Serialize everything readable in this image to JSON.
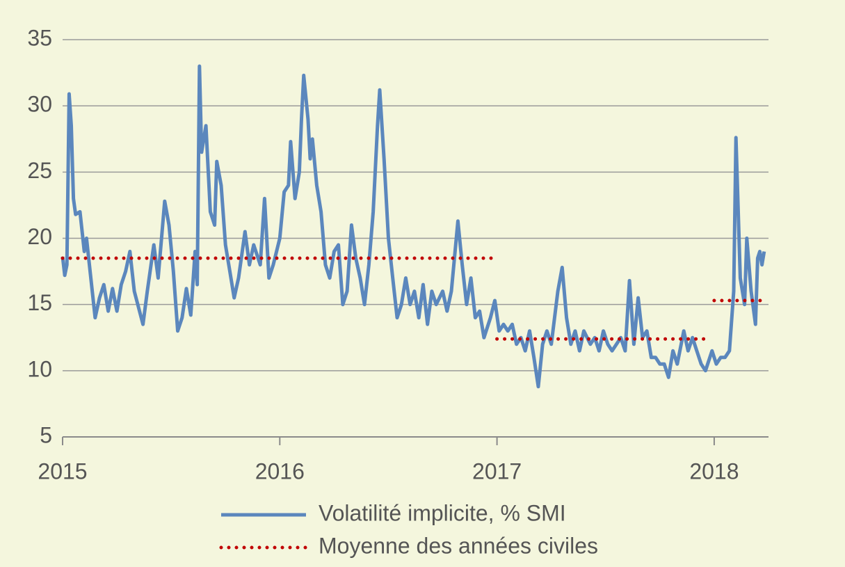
{
  "chart_data": {
    "type": "line",
    "xlim": [
      2015,
      2018.25
    ],
    "xticks": [
      2015,
      2016,
      2017,
      2018
    ],
    "ylim": [
      5,
      35
    ],
    "yticks": [
      5,
      10,
      15,
      20,
      25,
      30,
      35
    ],
    "grid": true,
    "legend": "bottom",
    "series": [
      {
        "name": "Volatilité implicite, % SMI",
        "color": "#5b87bd",
        "style": "solid",
        "x": [
          2015.0,
          2015.01,
          2015.02,
          2015.03,
          2015.04,
          2015.05,
          2015.06,
          2015.08,
          2015.1,
          2015.11,
          2015.13,
          2015.15,
          2015.17,
          2015.19,
          2015.21,
          2015.23,
          2015.25,
          2015.27,
          2015.29,
          2015.31,
          2015.33,
          2015.37,
          2015.39,
          2015.42,
          2015.44,
          2015.47,
          2015.49,
          2015.51,
          2015.53,
          2015.55,
          2015.57,
          2015.59,
          2015.61,
          2015.62,
          2015.63,
          2015.64,
          2015.66,
          2015.68,
          2015.7,
          2015.71,
          2015.73,
          2015.75,
          2015.77,
          2015.79,
          2015.81,
          2015.84,
          2015.86,
          2015.88,
          2015.91,
          2015.93,
          2015.95,
          2015.97,
          2016.0,
          2016.02,
          2016.04,
          2016.05,
          2016.07,
          2016.09,
          2016.1,
          2016.11,
          2016.13,
          2016.14,
          2016.15,
          2016.17,
          2016.19,
          2016.21,
          2016.23,
          2016.25,
          2016.27,
          2016.29,
          2016.31,
          2016.33,
          2016.35,
          2016.37,
          2016.39,
          2016.41,
          2016.43,
          2016.45,
          2016.46,
          2016.48,
          2016.5,
          2016.52,
          2016.54,
          2016.56,
          2016.58,
          2016.6,
          2016.62,
          2016.64,
          2016.66,
          2016.68,
          2016.7,
          2016.72,
          2016.75,
          2016.77,
          2016.79,
          2016.82,
          2016.84,
          2016.86,
          2016.88,
          2016.9,
          2016.92,
          2016.94,
          2016.97,
          2016.99,
          2017.01,
          2017.03,
          2017.05,
          2017.07,
          2017.09,
          2017.11,
          2017.13,
          2017.15,
          2017.17,
          2017.19,
          2017.21,
          2017.23,
          2017.25,
          2017.28,
          2017.3,
          2017.32,
          2017.34,
          2017.36,
          2017.38,
          2017.4,
          2017.43,
          2017.45,
          2017.47,
          2017.49,
          2017.51,
          2017.53,
          2017.55,
          2017.57,
          2017.59,
          2017.61,
          2017.63,
          2017.65,
          2017.67,
          2017.69,
          2017.71,
          2017.73,
          2017.75,
          2017.77,
          2017.79,
          2017.81,
          2017.83,
          2017.86,
          2017.88,
          2017.9,
          2017.92,
          2017.94,
          2017.96,
          2017.99,
          2018.01,
          2018.03,
          2018.05,
          2018.07,
          2018.09,
          2018.1,
          2018.12,
          2018.13,
          2018.14,
          2018.15,
          2018.17,
          2018.19,
          2018.2,
          2018.21,
          2018.22,
          2018.23
        ],
        "values": [
          18.6,
          17.2,
          18.0,
          30.9,
          28.5,
          23.0,
          21.8,
          22.0,
          19.0,
          20.0,
          17.0,
          14.0,
          15.5,
          16.5,
          14.5,
          16.2,
          14.5,
          16.5,
          17.5,
          19.0,
          16.0,
          13.5,
          16.0,
          19.5,
          17.0,
          22.8,
          21.0,
          17.5,
          13.0,
          14.0,
          16.2,
          14.2,
          19.0,
          16.5,
          33.0,
          26.5,
          28.5,
          22.0,
          21.0,
          25.8,
          24.0,
          19.5,
          17.5,
          15.5,
          17.0,
          20.5,
          18.0,
          19.5,
          18.0,
          23.0,
          17.0,
          18.0,
          20.0,
          23.5,
          24.0,
          27.3,
          23.0,
          25.0,
          29.0,
          32.3,
          29.0,
          26.0,
          27.5,
          24.0,
          22.0,
          18.0,
          17.0,
          19.0,
          19.5,
          15.0,
          16.0,
          21.0,
          18.5,
          17.0,
          15.0,
          18.0,
          22.0,
          28.5,
          31.2,
          26.0,
          20.0,
          17.0,
          14.0,
          15.0,
          17.0,
          15.0,
          16.0,
          14.0,
          16.5,
          13.5,
          16.0,
          15.0,
          16.0,
          14.5,
          16.0,
          21.3,
          18.0,
          15.0,
          17.0,
          14.0,
          14.5,
          12.5,
          14.0,
          15.3,
          13.0,
          13.5,
          13.0,
          13.5,
          12.0,
          12.5,
          11.5,
          13.0,
          11.0,
          8.8,
          12.0,
          13.0,
          12.0,
          16.0,
          17.8,
          14.0,
          12.0,
          13.0,
          11.5,
          13.0,
          12.0,
          12.5,
          11.5,
          13.0,
          12.0,
          11.5,
          12.0,
          12.5,
          11.5,
          16.8,
          12.0,
          15.5,
          12.5,
          13.0,
          11.0,
          11.0,
          10.5,
          10.5,
          9.5,
          11.5,
          10.5,
          13.0,
          11.5,
          12.5,
          11.5,
          10.5,
          10.0,
          11.5,
          10.5,
          11.0,
          11.0,
          11.5,
          16.0,
          27.6,
          17.0,
          16.0,
          15.0,
          20.0,
          16.0,
          13.5,
          18.5,
          19.0,
          18.0,
          19.0
        ]
      },
      {
        "name": "Moyenne des années civiles",
        "color": "#c00000",
        "style": "dotted",
        "x": [
          2015.0,
          2016.98,
          2016.99,
          2017.0,
          2017.98,
          2017.99,
          2018.0,
          2018.22
        ],
        "values": [
          18.5,
          18.5,
          null,
          12.4,
          12.4,
          null,
          15.3,
          15.3
        ]
      }
    ]
  }
}
